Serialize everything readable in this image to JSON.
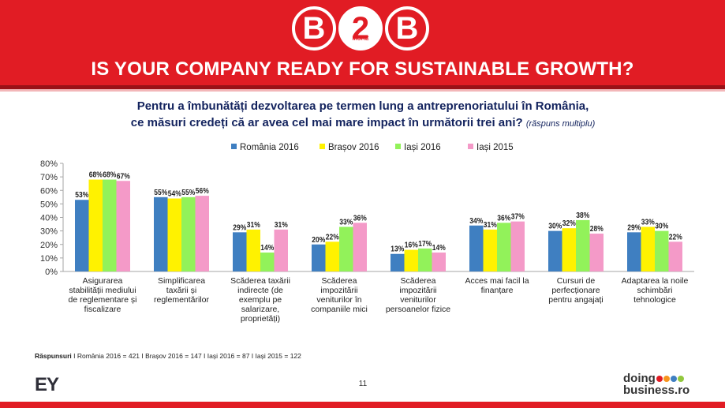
{
  "header": {
    "logo_left": "B",
    "logo_mid": "2",
    "logo_more": "MORE",
    "logo_right": "B",
    "headline": "IS YOUR COMPANY READY FOR SUSTAINABLE GROWTH?"
  },
  "question": {
    "line1": "Pentru a îmbunătăți dezvoltarea pe termen lung a antreprenoriatului în România,",
    "line2": "ce măsuri credeți că ar avea cel mai mare impact în următorii trei ani?",
    "note": "(răspuns multiplu)"
  },
  "chart_data": {
    "type": "bar",
    "title": "",
    "xlabel": "",
    "ylabel": "",
    "ylim": [
      0,
      80
    ],
    "yticks": [
      "0%",
      "10%",
      "20%",
      "30%",
      "40%",
      "50%",
      "60%",
      "70%",
      "80%"
    ],
    "legend_position": "top",
    "categories": [
      [
        "Asigurarea",
        "stabilității mediului",
        "de reglementare și",
        "fiscalizare"
      ],
      [
        "Simplificarea",
        "taxării și",
        "reglementărilor"
      ],
      [
        "Scăderea taxării",
        "indirecte (de",
        "exemplu pe",
        "salarizare,",
        "proprietăți)"
      ],
      [
        "Scăderea",
        "impozitării",
        "veniturilor în",
        "companiile mici"
      ],
      [
        "Scăderea",
        "impozitării",
        "veniturilor",
        "persoanelor fizice"
      ],
      [
        "Acces mai facil la",
        "finanțare"
      ],
      [
        "Cursuri de",
        "perfecționare",
        "pentru angajați"
      ],
      [
        "Adaptarea la noile",
        "schimbări",
        "tehnologice"
      ]
    ],
    "series": [
      {
        "name": "România 2016",
        "color": "#3f7fc1",
        "values": [
          53,
          55,
          29,
          20,
          13,
          34,
          30,
          29
        ]
      },
      {
        "name": "Brașov 2016",
        "color": "#fff200",
        "values": [
          68,
          54,
          31,
          22,
          16,
          31,
          32,
          33
        ]
      },
      {
        "name": "Iași 2016",
        "color": "#92f25a",
        "values": [
          68,
          55,
          14,
          33,
          17,
          36,
          38,
          30
        ]
      },
      {
        "name": "Iași 2015",
        "color": "#f49ac8",
        "values": [
          67,
          56,
          31,
          36,
          14,
          37,
          28,
          22
        ]
      }
    ],
    "value_suffix": "%"
  },
  "footer": {
    "footnote_label": "Răspunsuri",
    "footnote_text": "I România 2016 = 421 I Brașov 2016 = 147 I Iași 2016 = 87 I Iași 2015 = 122",
    "page_number": "11",
    "ey_logo": "EY",
    "db_line1": "doing",
    "db_line2": "business.ro",
    "db_dot_colors": [
      "#e11c24",
      "#f7941d",
      "#3f7fc1",
      "#92c83e"
    ]
  }
}
